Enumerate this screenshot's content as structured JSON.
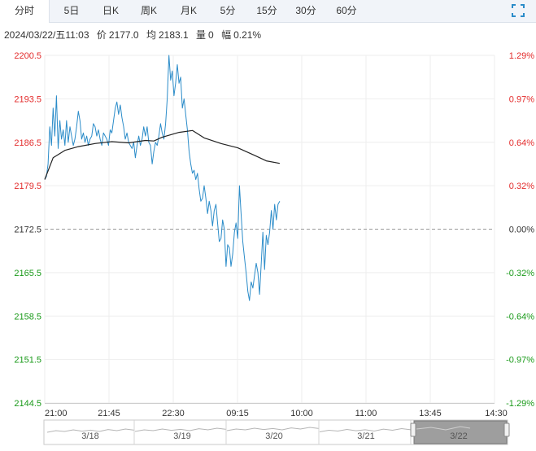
{
  "tabs": [
    {
      "label": "分时",
      "active": true
    },
    {
      "label": "5日"
    },
    {
      "label": "日K"
    },
    {
      "label": "周K"
    },
    {
      "label": "月K"
    },
    {
      "label": "5分"
    },
    {
      "label": "15分"
    },
    {
      "label": "30分"
    },
    {
      "label": "60分"
    }
  ],
  "info": {
    "datetime": "2024/03/22/五11:03",
    "price_label": "价",
    "price": "2177.0",
    "avg_label": "均",
    "avg": "2183.1",
    "volume_label": "量",
    "volume": "0",
    "amplitude_label": "幅",
    "amplitude": "0.21%"
  },
  "colors": {
    "price_line": "#2b8cc9",
    "avg_line": "#222222",
    "up": "#e32b2b",
    "down": "#1a9a1a",
    "flat": "#333333",
    "grid": "#eeeeee",
    "baseline": "#999999"
  },
  "chart_data": {
    "type": "line",
    "y_ticks": [
      "2200.5",
      "2193.5",
      "2186.5",
      "2179.5",
      "2172.5",
      "2165.5",
      "2158.5",
      "2151.5",
      "2144.5"
    ],
    "pct_ticks": [
      "1.29%",
      "0.97%",
      "0.64%",
      "0.32%",
      "0.00%",
      "-0.32%",
      "-0.64%",
      "-0.97%",
      "-1.29%"
    ],
    "x_ticks": [
      "21:00",
      "21:45",
      "22:30",
      "09:15",
      "10:00",
      "11:00",
      "13:45",
      "14:30"
    ],
    "ylim": [
      2144.5,
      2200.5
    ],
    "base_price": 2172.5,
    "grid": true,
    "series": [
      {
        "role": "price",
        "points": [
          [
            0,
            2180.5
          ],
          [
            1,
            2181.0
          ],
          [
            2,
            2183.0
          ],
          [
            3,
            2189.0
          ],
          [
            4,
            2186.0
          ],
          [
            5,
            2192.0
          ],
          [
            6,
            2187.5
          ],
          [
            7,
            2194.0
          ],
          [
            8,
            2185.5
          ],
          [
            9,
            2190.0
          ],
          [
            10,
            2187.0
          ],
          [
            11,
            2188.5
          ],
          [
            12,
            2186.0
          ],
          [
            13,
            2190.0
          ],
          [
            14,
            2186.5
          ],
          [
            15,
            2189.0
          ],
          [
            16,
            2187.5
          ],
          [
            17,
            2186.0
          ],
          [
            18,
            2187.0
          ],
          [
            19,
            2189.0
          ],
          [
            20,
            2191.5
          ],
          [
            21,
            2190.0
          ],
          [
            22,
            2187.0
          ],
          [
            23,
            2188.0
          ],
          [
            24,
            2186.5
          ],
          [
            25,
            2187.5
          ],
          [
            26,
            2186.0
          ],
          [
            27,
            2187.0
          ],
          [
            28,
            2187.5
          ],
          [
            29,
            2189.5
          ],
          [
            30,
            2189.0
          ],
          [
            31,
            2187.5
          ],
          [
            32,
            2188.5
          ],
          [
            33,
            2187.0
          ],
          [
            34,
            2186.0
          ],
          [
            35,
            2188.0
          ],
          [
            36,
            2187.5
          ],
          [
            37,
            2187.0
          ],
          [
            38,
            2186.0
          ],
          [
            39,
            2188.5
          ],
          [
            40,
            2188.0
          ],
          [
            41,
            2190.0
          ],
          [
            42,
            2192.0
          ],
          [
            43,
            2193.0
          ],
          [
            44,
            2191.0
          ],
          [
            45,
            2192.5
          ],
          [
            46,
            2190.5
          ],
          [
            47,
            2189.0
          ],
          [
            48,
            2187.0
          ],
          [
            49,
            2188.0
          ],
          [
            50,
            2186.5
          ],
          [
            51,
            2186.0
          ],
          [
            52,
            2185.5
          ],
          [
            53,
            2186.5
          ],
          [
            54,
            2184.0
          ],
          [
            55,
            2186.0
          ],
          [
            56,
            2187.5
          ],
          [
            57,
            2186.0
          ],
          [
            58,
            2187.0
          ],
          [
            59,
            2189.0
          ],
          [
            60,
            2187.5
          ],
          [
            61,
            2189.0
          ],
          [
            62,
            2186.5
          ],
          [
            63,
            2186.0
          ],
          [
            64,
            2183.0
          ],
          [
            65,
            2185.0
          ],
          [
            66,
            2186.5
          ],
          [
            67,
            2186.0
          ],
          [
            68,
            2187.5
          ],
          [
            69,
            2189.5
          ],
          [
            70,
            2188.0
          ],
          [
            71,
            2187.0
          ],
          [
            72,
            2189.5
          ],
          [
            73,
            2193.5
          ],
          [
            74,
            2200.5
          ],
          [
            75,
            2196.5
          ],
          [
            76,
            2198.0
          ],
          [
            77,
            2194.0
          ],
          [
            78,
            2196.0
          ],
          [
            79,
            2199.0
          ],
          [
            80,
            2196.0
          ],
          [
            81,
            2197.0
          ],
          [
            82,
            2192.0
          ],
          [
            83,
            2193.5
          ],
          [
            84,
            2191.0
          ],
          [
            85,
            2188.5
          ],
          [
            86,
            2185.0
          ],
          [
            87,
            2183.0
          ],
          [
            88,
            2181.5
          ],
          [
            89,
            2182.0
          ],
          [
            90,
            2180.5
          ],
          [
            91,
            2181.5
          ],
          [
            92,
            2179.0
          ],
          [
            93,
            2177.0
          ],
          [
            94,
            2177.5
          ],
          [
            95,
            2179.5
          ],
          [
            96,
            2177.5
          ],
          [
            97,
            2175.0
          ],
          [
            98,
            2177.0
          ],
          [
            99,
            2175.5
          ],
          [
            100,
            2173.0
          ],
          [
            101,
            2175.5
          ],
          [
            102,
            2176.5
          ],
          [
            103,
            2173.5
          ],
          [
            104,
            2170.5
          ],
          [
            105,
            2171.0
          ],
          [
            106,
            2174.0
          ],
          [
            107,
            2172.5
          ],
          [
            108,
            2166.5
          ],
          [
            109,
            2170.0
          ],
          [
            110,
            2169.5
          ],
          [
            111,
            2166.5
          ],
          [
            112,
            2168.5
          ],
          [
            113,
            2172.0
          ],
          [
            114,
            2173.5
          ],
          [
            115,
            2171.0
          ],
          [
            116,
            2179.5
          ],
          [
            117,
            2175.0
          ],
          [
            118,
            2170.5
          ],
          [
            119,
            2168.0
          ],
          [
            120,
            2165.5
          ],
          [
            121,
            2162.5
          ],
          [
            122,
            2161.0
          ],
          [
            123,
            2164.0
          ],
          [
            124,
            2163.0
          ],
          [
            125,
            2165.0
          ],
          [
            126,
            2167.0
          ],
          [
            127,
            2165.5
          ],
          [
            128,
            2162.0
          ],
          [
            129,
            2167.0
          ],
          [
            130,
            2172.0
          ],
          [
            131,
            2166.0
          ],
          [
            132,
            2171.5
          ],
          [
            133,
            2170.0
          ],
          [
            134,
            2172.0
          ],
          [
            135,
            2175.5
          ],
          [
            136,
            2172.5
          ],
          [
            137,
            2176.5
          ],
          [
            138,
            2174.0
          ],
          [
            139,
            2176.5
          ],
          [
            140,
            2177.0
          ]
        ]
      },
      {
        "role": "average",
        "points": [
          [
            0,
            2180.5
          ],
          [
            5,
            2184.0
          ],
          [
            12,
            2185.2
          ],
          [
            20,
            2185.8
          ],
          [
            30,
            2186.3
          ],
          [
            40,
            2186.6
          ],
          [
            50,
            2186.4
          ],
          [
            60,
            2186.8
          ],
          [
            65,
            2186.7
          ],
          [
            70,
            2187.3
          ],
          [
            80,
            2188.1
          ],
          [
            88,
            2188.4
          ],
          [
            95,
            2187.2
          ],
          [
            105,
            2186.3
          ],
          [
            115,
            2185.6
          ],
          [
            125,
            2184.4
          ],
          [
            132,
            2183.5
          ],
          [
            140,
            2183.1
          ]
        ]
      }
    ]
  },
  "navigator": {
    "dates": [
      "3/18",
      "3/19",
      "3/20",
      "3/21",
      "3/22"
    ]
  }
}
